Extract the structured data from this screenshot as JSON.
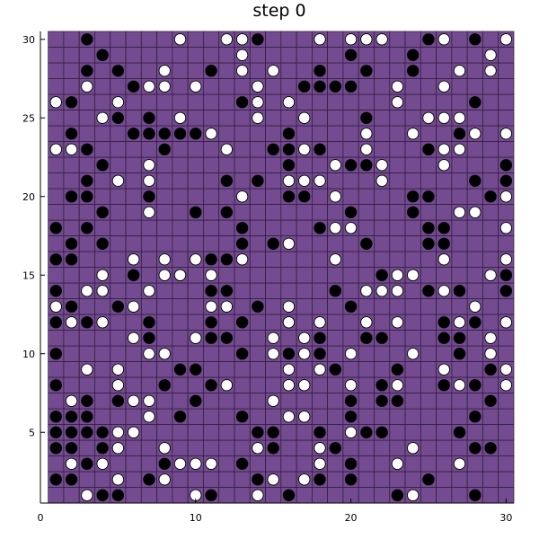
{
  "chart_data": {
    "type": "scatter",
    "title": "step 0",
    "xlabel": "",
    "ylabel": "",
    "xlim": [
      0,
      30.5
    ],
    "ylim": [
      0.5,
      30.5
    ],
    "xticks": [
      0,
      10,
      20,
      30
    ],
    "yticks": [
      5,
      10,
      15,
      20,
      25,
      30
    ],
    "grid": true,
    "legend": "none",
    "background_cells": {
      "range_x": [
        1,
        30
      ],
      "range_y": [
        1,
        30
      ],
      "color": "#744a90"
    },
    "series": [
      {
        "marker": "circle",
        "color": "#000000",
        "points": [
          [
            3,
            30
          ],
          [
            14,
            30
          ],
          [
            25,
            30
          ],
          [
            28,
            30
          ],
          [
            4,
            29
          ],
          [
            20,
            29
          ],
          [
            24,
            29
          ],
          [
            3,
            28
          ],
          [
            5,
            28
          ],
          [
            11,
            28
          ],
          [
            18,
            28
          ],
          [
            21,
            28
          ],
          [
            24,
            28
          ],
          [
            6,
            27
          ],
          [
            17,
            27
          ],
          [
            18,
            27
          ],
          [
            19,
            27
          ],
          [
            20,
            27
          ],
          [
            2,
            26
          ],
          [
            13,
            26
          ],
          [
            28,
            26
          ],
          [
            5,
            25
          ],
          [
            7,
            25
          ],
          [
            21,
            25
          ],
          [
            2,
            24
          ],
          [
            6,
            24
          ],
          [
            7,
            24
          ],
          [
            8,
            24
          ],
          [
            9,
            24
          ],
          [
            10,
            24
          ],
          [
            16,
            24
          ],
          [
            27,
            24
          ],
          [
            3,
            23
          ],
          [
            8,
            23
          ],
          [
            15,
            23
          ],
          [
            16,
            23
          ],
          [
            18,
            23
          ],
          [
            25,
            23
          ],
          [
            4,
            22
          ],
          [
            16,
            22
          ],
          [
            20,
            22
          ],
          [
            21,
            22
          ],
          [
            30,
            22
          ],
          [
            3,
            21
          ],
          [
            12,
            21
          ],
          [
            14,
            21
          ],
          [
            28,
            21
          ],
          [
            30,
            21
          ],
          [
            2,
            20
          ],
          [
            3,
            20
          ],
          [
            7,
            20
          ],
          [
            16,
            20
          ],
          [
            17,
            20
          ],
          [
            24,
            20
          ],
          [
            25,
            20
          ],
          [
            29,
            20
          ],
          [
            4,
            19
          ],
          [
            10,
            19
          ],
          [
            12,
            19
          ],
          [
            20,
            19
          ],
          [
            24,
            19
          ],
          [
            1,
            18
          ],
          [
            3,
            18
          ],
          [
            13,
            18
          ],
          [
            18,
            18
          ],
          [
            25,
            18
          ],
          [
            26,
            18
          ],
          [
            2,
            17
          ],
          [
            4,
            17
          ],
          [
            13,
            17
          ],
          [
            15,
            17
          ],
          [
            21,
            17
          ],
          [
            25,
            17
          ],
          [
            26,
            17
          ],
          [
            1,
            16
          ],
          [
            2,
            16
          ],
          [
            11,
            16
          ],
          [
            12,
            16
          ],
          [
            6,
            15
          ],
          [
            9,
            15
          ],
          [
            22,
            15
          ],
          [
            30,
            15
          ],
          [
            1,
            14
          ],
          [
            11,
            14
          ],
          [
            12,
            14
          ],
          [
            19,
            14
          ],
          [
            25,
            14
          ],
          [
            27,
            14
          ],
          [
            30,
            14
          ],
          [
            2,
            13
          ],
          [
            5,
            13
          ],
          [
            14,
            13
          ],
          [
            20,
            13
          ],
          [
            1,
            12
          ],
          [
            3,
            12
          ],
          [
            7,
            12
          ],
          [
            11,
            12
          ],
          [
            13,
            12
          ],
          [
            16,
            12
          ],
          [
            26,
            12
          ],
          [
            28,
            12
          ],
          [
            7,
            11
          ],
          [
            11,
            11
          ],
          [
            12,
            11
          ],
          [
            18,
            11
          ],
          [
            21,
            11
          ],
          [
            22,
            11
          ],
          [
            26,
            11
          ],
          [
            27,
            11
          ],
          [
            1,
            10
          ],
          [
            13,
            10
          ],
          [
            16,
            10
          ],
          [
            18,
            10
          ],
          [
            27,
            10
          ],
          [
            9,
            9
          ],
          [
            10,
            9
          ],
          [
            19,
            9
          ],
          [
            23,
            9
          ],
          [
            29,
            9
          ],
          [
            1,
            8
          ],
          [
            8,
            8
          ],
          [
            11,
            8
          ],
          [
            22,
            8
          ],
          [
            26,
            8
          ],
          [
            28,
            8
          ],
          [
            3,
            7
          ],
          [
            5,
            7
          ],
          [
            10,
            7
          ],
          [
            20,
            7
          ],
          [
            22,
            7
          ],
          [
            23,
            7
          ],
          [
            29,
            7
          ],
          [
            1,
            6
          ],
          [
            2,
            6
          ],
          [
            3,
            6
          ],
          [
            9,
            6
          ],
          [
            13,
            6
          ],
          [
            20,
            6
          ],
          [
            28,
            6
          ],
          [
            1,
            5
          ],
          [
            2,
            5
          ],
          [
            3,
            5
          ],
          [
            4,
            5
          ],
          [
            14,
            5
          ],
          [
            15,
            5
          ],
          [
            18,
            5
          ],
          [
            21,
            5
          ],
          [
            22,
            5
          ],
          [
            27,
            5
          ],
          [
            1,
            4
          ],
          [
            2,
            4
          ],
          [
            4,
            4
          ],
          [
            15,
            4
          ],
          [
            19,
            4
          ],
          [
            28,
            4
          ],
          [
            29,
            4
          ],
          [
            3,
            3
          ],
          [
            8,
            3
          ],
          [
            13,
            3
          ],
          [
            20,
            3
          ],
          [
            1,
            2
          ],
          [
            2,
            2
          ],
          [
            7,
            2
          ],
          [
            14,
            2
          ],
          [
            18,
            2
          ],
          [
            20,
            2
          ],
          [
            25,
            2
          ],
          [
            4,
            1
          ],
          [
            5,
            1
          ],
          [
            11,
            1
          ],
          [
            16,
            1
          ],
          [
            23,
            1
          ],
          [
            28,
            1
          ]
        ]
      },
      {
        "marker": "circle",
        "color": "#ffffff",
        "points": [
          [
            9,
            30
          ],
          [
            12,
            30
          ],
          [
            13,
            30
          ],
          [
            18,
            30
          ],
          [
            20,
            30
          ],
          [
            21,
            30
          ],
          [
            22,
            30
          ],
          [
            26,
            30
          ],
          [
            30,
            30
          ],
          [
            13,
            29
          ],
          [
            29,
            29
          ],
          [
            8,
            28
          ],
          [
            13,
            28
          ],
          [
            15,
            28
          ],
          [
            27,
            28
          ],
          [
            29,
            28
          ],
          [
            3,
            27
          ],
          [
            7,
            27
          ],
          [
            8,
            27
          ],
          [
            10,
            27
          ],
          [
            14,
            27
          ],
          [
            23,
            27
          ],
          [
            26,
            27
          ],
          [
            1,
            26
          ],
          [
            5,
            26
          ],
          [
            14,
            26
          ],
          [
            16,
            26
          ],
          [
            23,
            26
          ],
          [
            4,
            25
          ],
          [
            9,
            25
          ],
          [
            14,
            25
          ],
          [
            17,
            25
          ],
          [
            25,
            25
          ],
          [
            26,
            25
          ],
          [
            27,
            25
          ],
          [
            11,
            24
          ],
          [
            21,
            24
          ],
          [
            24,
            24
          ],
          [
            28,
            24
          ],
          [
            30,
            24
          ],
          [
            1,
            23
          ],
          [
            2,
            23
          ],
          [
            12,
            23
          ],
          [
            17,
            23
          ],
          [
            21,
            23
          ],
          [
            26,
            23
          ],
          [
            27,
            23
          ],
          [
            7,
            22
          ],
          [
            19,
            22
          ],
          [
            22,
            22
          ],
          [
            26,
            22
          ],
          [
            5,
            21
          ],
          [
            7,
            21
          ],
          [
            16,
            21
          ],
          [
            17,
            21
          ],
          [
            18,
            21
          ],
          [
            22,
            21
          ],
          [
            13,
            20
          ],
          [
            19,
            20
          ],
          [
            30,
            20
          ],
          [
            7,
            19
          ],
          [
            27,
            19
          ],
          [
            28,
            19
          ],
          [
            19,
            18
          ],
          [
            20,
            18
          ],
          [
            30,
            18
          ],
          [
            16,
            17
          ],
          [
            6,
            16
          ],
          [
            8,
            16
          ],
          [
            10,
            16
          ],
          [
            13,
            16
          ],
          [
            19,
            16
          ],
          [
            26,
            16
          ],
          [
            30,
            16
          ],
          [
            4,
            15
          ],
          [
            8,
            15
          ],
          [
            9,
            15
          ],
          [
            11,
            15
          ],
          [
            23,
            15
          ],
          [
            24,
            15
          ],
          [
            29,
            15
          ],
          [
            3,
            14
          ],
          [
            4,
            14
          ],
          [
            7,
            14
          ],
          [
            21,
            14
          ],
          [
            22,
            14
          ],
          [
            23,
            14
          ],
          [
            26,
            14
          ],
          [
            1,
            13
          ],
          [
            6,
            13
          ],
          [
            11,
            13
          ],
          [
            12,
            13
          ],
          [
            16,
            13
          ],
          [
            28,
            13
          ],
          [
            2,
            12
          ],
          [
            4,
            12
          ],
          [
            16,
            12
          ],
          [
            18,
            12
          ],
          [
            21,
            12
          ],
          [
            23,
            12
          ],
          [
            27,
            12
          ],
          [
            30,
            12
          ],
          [
            6,
            11
          ],
          [
            10,
            11
          ],
          [
            15,
            11
          ],
          [
            17,
            11
          ],
          [
            29,
            11
          ],
          [
            7,
            10
          ],
          [
            8,
            10
          ],
          [
            15,
            10
          ],
          [
            17,
            10
          ],
          [
            20,
            10
          ],
          [
            24,
            10
          ],
          [
            29,
            10
          ],
          [
            3,
            9
          ],
          [
            5,
            9
          ],
          [
            16,
            9
          ],
          [
            18,
            9
          ],
          [
            26,
            9
          ],
          [
            30,
            9
          ],
          [
            5,
            8
          ],
          [
            12,
            8
          ],
          [
            16,
            8
          ],
          [
            17,
            8
          ],
          [
            20,
            8
          ],
          [
            23,
            8
          ],
          [
            27,
            8
          ],
          [
            30,
            8
          ],
          [
            2,
            7
          ],
          [
            6,
            7
          ],
          [
            7,
            7
          ],
          [
            15,
            7
          ],
          [
            7,
            6
          ],
          [
            16,
            6
          ],
          [
            17,
            6
          ],
          [
            5,
            5
          ],
          [
            6,
            5
          ],
          [
            20,
            5
          ],
          [
            5,
            4
          ],
          [
            8,
            4
          ],
          [
            14,
            4
          ],
          [
            18,
            4
          ],
          [
            24,
            4
          ],
          [
            2,
            3
          ],
          [
            4,
            3
          ],
          [
            9,
            3
          ],
          [
            10,
            3
          ],
          [
            11,
            3
          ],
          [
            18,
            3
          ],
          [
            23,
            3
          ],
          [
            27,
            3
          ],
          [
            5,
            2
          ],
          [
            8,
            2
          ],
          [
            15,
            2
          ],
          [
            17,
            2
          ],
          [
            3,
            1
          ],
          [
            10,
            1
          ],
          [
            14,
            1
          ],
          [
            24,
            1
          ]
        ]
      }
    ]
  }
}
